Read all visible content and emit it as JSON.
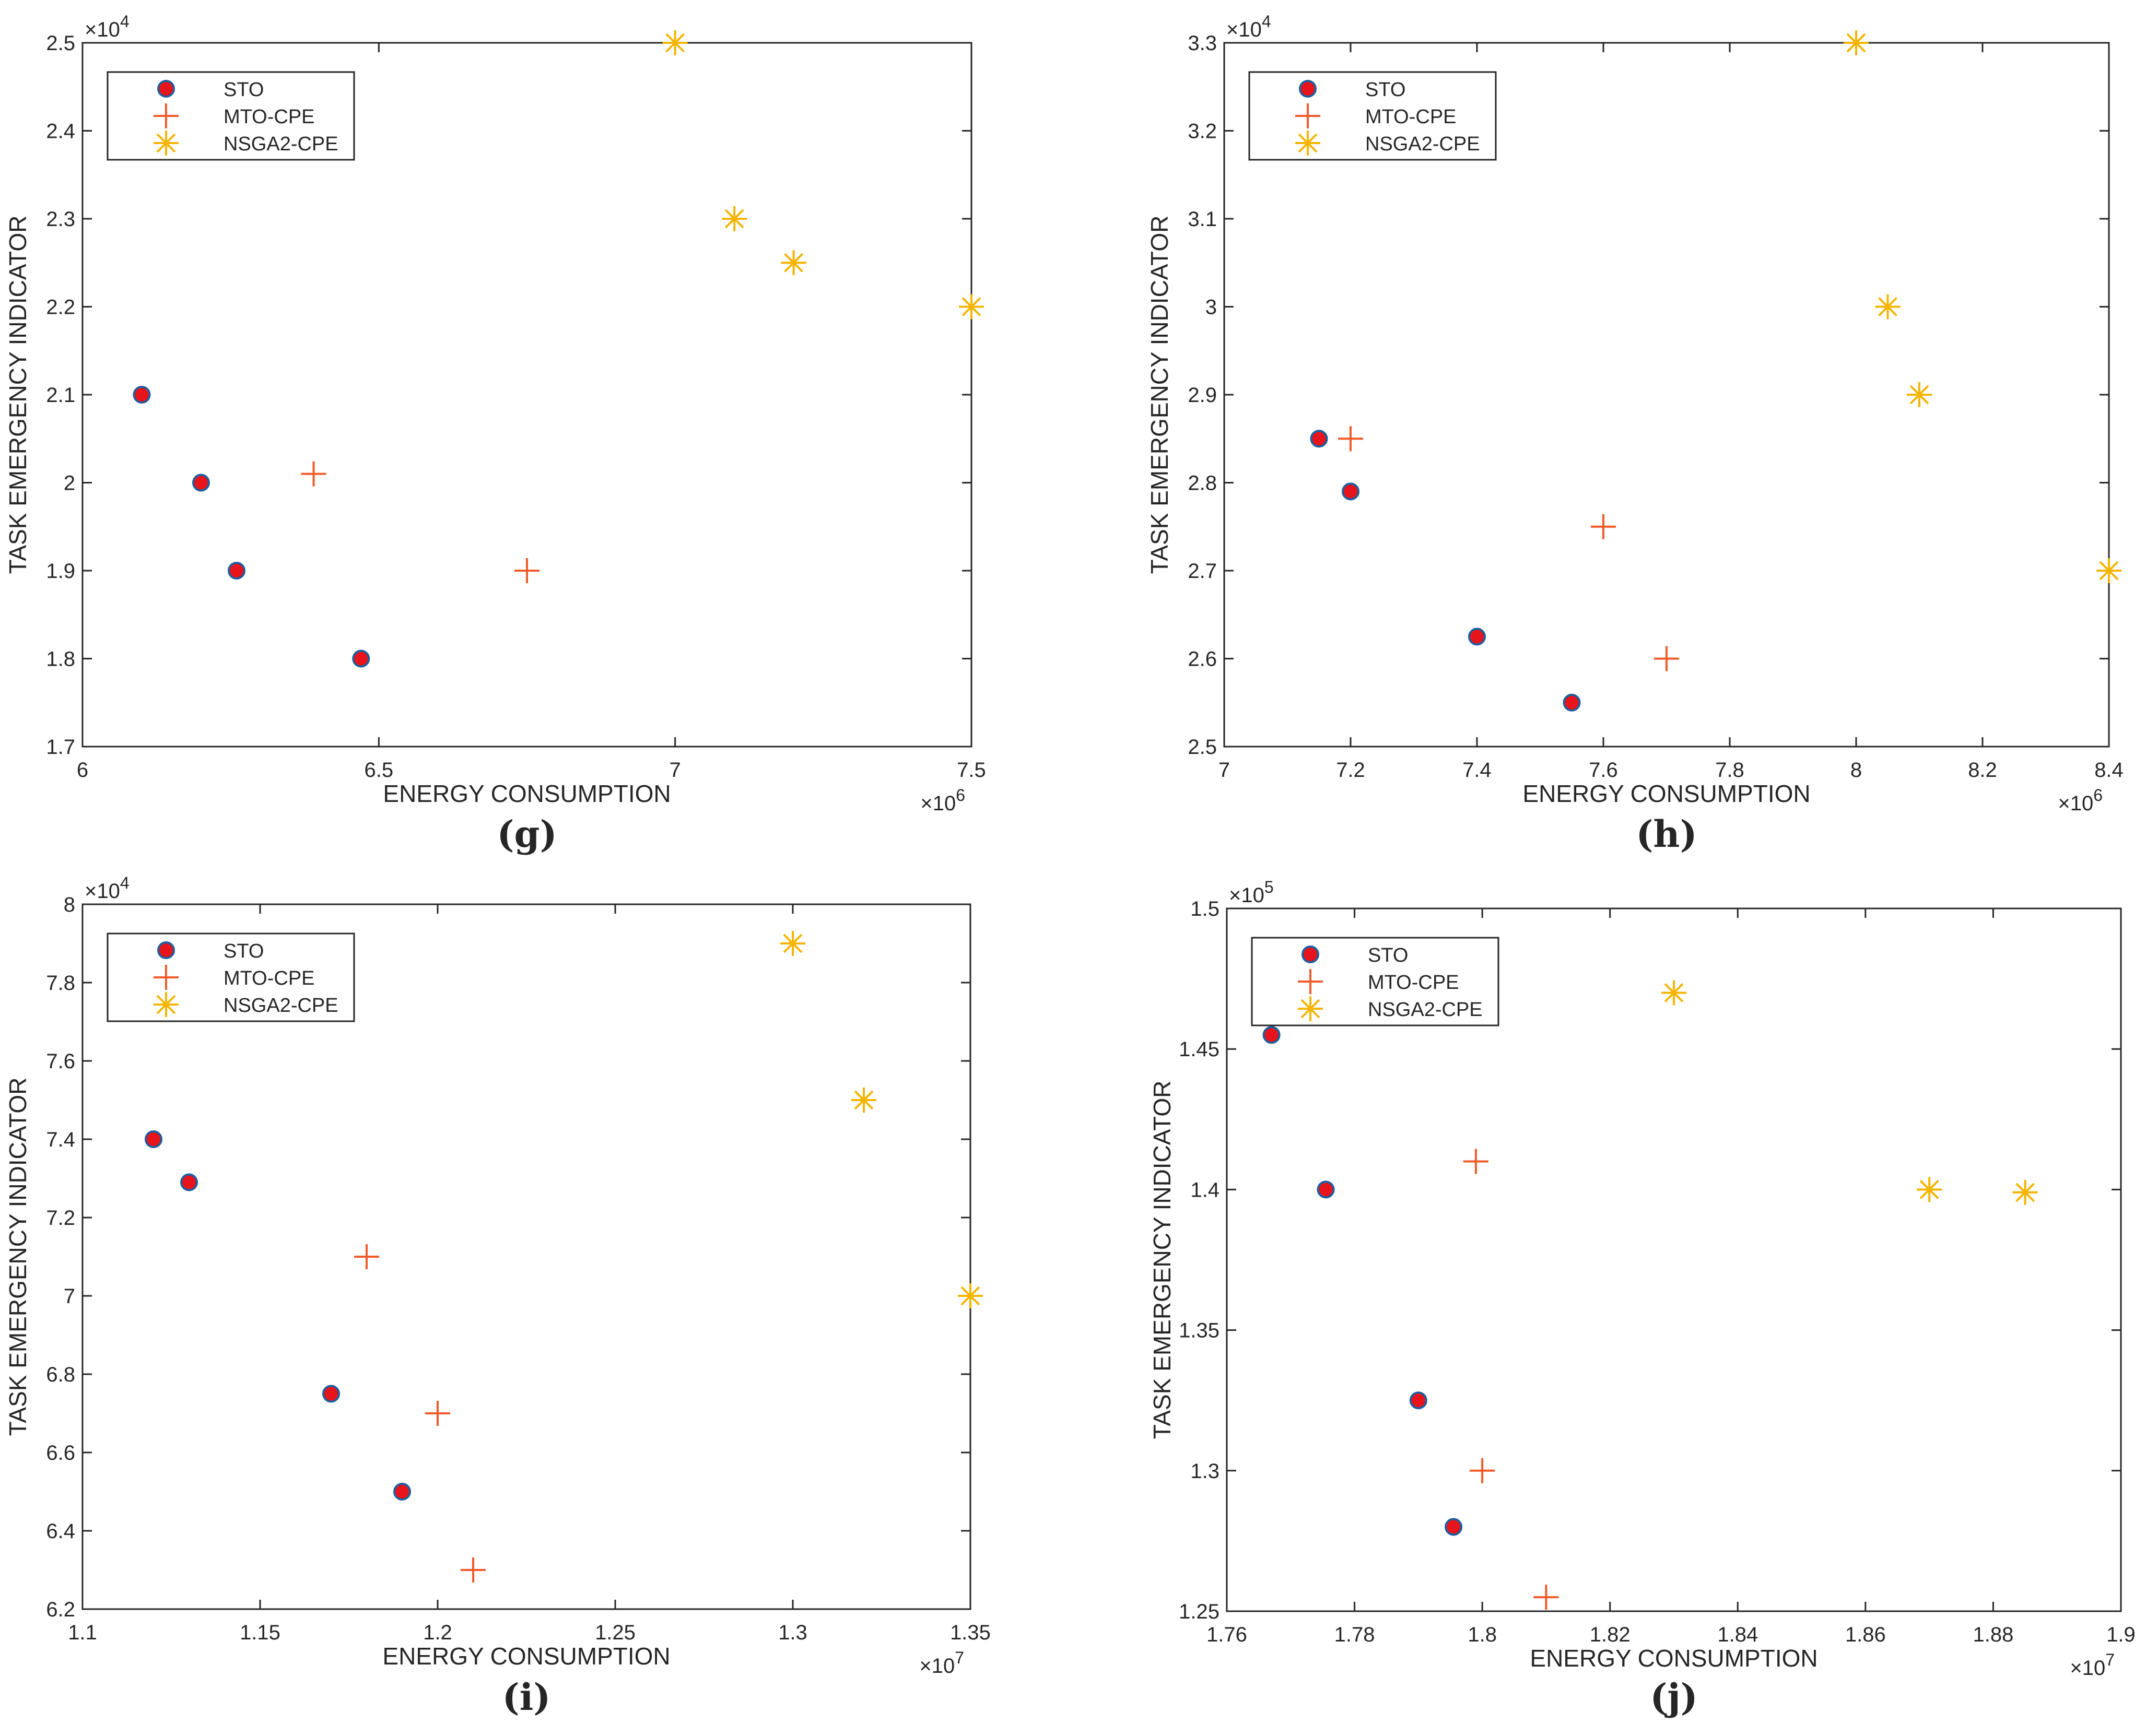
{
  "series_styles": {
    "STO": {
      "marker": "dot",
      "fill": "#e8141b",
      "stroke": "#1d5f9e"
    },
    "MTO-CPE": {
      "marker": "plus",
      "color": "#f05a28"
    },
    "NSGA2-CPE": {
      "marker": "asterisk",
      "color": "#f5b400"
    }
  },
  "chart_data": [
    {
      "type": "scatter",
      "panel": "g",
      "caption": "g",
      "xlabel": "ENERGY CONSUMPTION",
      "ylabel": "TASK EMERGENCY INDICATOR",
      "x_exponent": "6",
      "y_exponent": "4",
      "xlim": [
        6,
        7.5
      ],
      "ylim": [
        1.7,
        2.5
      ],
      "xticks": [
        "6",
        "6.5",
        "7",
        "7.5"
      ],
      "yticks": [
        "1.7",
        "1.8",
        "1.9",
        "2",
        "2.1",
        "2.2",
        "2.3",
        "2.4",
        "2.5"
      ],
      "legend": [
        "STO",
        "MTO-CPE",
        "NSGA2-CPE"
      ],
      "legend_position": "top-left",
      "series": [
        {
          "name": "STO",
          "x": [
            6.1,
            6.2,
            6.26,
            6.47
          ],
          "y": [
            2.1,
            2.0,
            1.9,
            1.8
          ]
        },
        {
          "name": "MTO-CPE",
          "x": [
            6.39,
            6.75
          ],
          "y": [
            2.01,
            1.9
          ]
        },
        {
          "name": "NSGA2-CPE",
          "x": [
            7.0,
            7.1,
            7.2,
            7.5
          ],
          "y": [
            2.5,
            2.3,
            2.25,
            2.2
          ]
        }
      ]
    },
    {
      "type": "scatter",
      "panel": "h",
      "caption": "h",
      "xlabel": "ENERGY CONSUMPTION",
      "ylabel": "TASK EMERGENCY INDICATOR",
      "x_exponent": "6",
      "y_exponent": "4",
      "xlim": [
        7,
        8.4
      ],
      "ylim": [
        2.5,
        3.3
      ],
      "xticks": [
        "7",
        "7.2",
        "7.4",
        "7.6",
        "7.8",
        "8",
        "8.2",
        "8.4"
      ],
      "yticks": [
        "2.5",
        "2.6",
        "2.7",
        "2.8",
        "2.9",
        "3",
        "3.1",
        "3.2",
        "3.3"
      ],
      "legend": [
        "STO",
        "MTO-CPE",
        "NSGA2-CPE"
      ],
      "legend_position": "top-left",
      "series": [
        {
          "name": "STO",
          "x": [
            7.15,
            7.2,
            7.4,
            7.55
          ],
          "y": [
            2.85,
            2.79,
            2.625,
            2.55
          ]
        },
        {
          "name": "MTO-CPE",
          "x": [
            7.2,
            7.6,
            7.7
          ],
          "y": [
            2.85,
            2.75,
            2.6
          ]
        },
        {
          "name": "NSGA2-CPE",
          "x": [
            8.0,
            8.05,
            8.1,
            8.4
          ],
          "y": [
            3.3,
            3.0,
            2.9,
            2.7
          ]
        }
      ]
    },
    {
      "type": "scatter",
      "panel": "i",
      "caption": "i",
      "xlabel": "ENERGY CONSUMPTION",
      "ylabel": "TASK EMERGENCY INDICATOR",
      "x_exponent": "7",
      "y_exponent": "4",
      "xlim": [
        1.1,
        1.35
      ],
      "ylim": [
        6.2,
        8
      ],
      "xticks": [
        "1.1",
        "1.15",
        "1.2",
        "1.25",
        "1.3",
        "1.35"
      ],
      "yticks": [
        "6.2",
        "6.4",
        "6.6",
        "6.8",
        "7",
        "7.2",
        "7.4",
        "7.6",
        "7.8",
        "8"
      ],
      "legend": [
        "STO",
        "MTO-CPE",
        "NSGA2-CPE"
      ],
      "legend_position": "top-left",
      "series": [
        {
          "name": "STO",
          "x": [
            1.12,
            1.13,
            1.17,
            1.19
          ],
          "y": [
            7.4,
            7.29,
            6.75,
            6.5
          ]
        },
        {
          "name": "MTO-CPE",
          "x": [
            1.18,
            1.2,
            1.21
          ],
          "y": [
            7.1,
            6.7,
            6.3
          ]
        },
        {
          "name": "NSGA2-CPE",
          "x": [
            1.3,
            1.32,
            1.35
          ],
          "y": [
            7.9,
            7.5,
            7.0
          ]
        }
      ]
    },
    {
      "type": "scatter",
      "panel": "j",
      "caption": "j",
      "xlabel": "ENERGY CONSUMPTION",
      "ylabel": "TASK EMERGENCY INDICATOR",
      "x_exponent": "7",
      "y_exponent": "5",
      "xlim": [
        1.76,
        1.9
      ],
      "ylim": [
        1.25,
        1.5
      ],
      "xticks": [
        "1.76",
        "1.78",
        "1.8",
        "1.82",
        "1.84",
        "1.86",
        "1.88",
        "1.9"
      ],
      "yticks": [
        "1.25",
        "1.3",
        "1.35",
        "1.4",
        "1.45",
        "1.5"
      ],
      "legend": [
        "STO",
        "MTO-CPE",
        "NSGA2-CPE"
      ],
      "legend_position": "top-left",
      "series": [
        {
          "name": "STO",
          "x": [
            1.767,
            1.7755,
            1.79,
            1.7955
          ],
          "y": [
            1.455,
            1.4,
            1.325,
            1.28
          ]
        },
        {
          "name": "MTO-CPE",
          "x": [
            1.799,
            1.8,
            1.81
          ],
          "y": [
            1.41,
            1.3,
            1.255
          ]
        },
        {
          "name": "NSGA2-CPE",
          "x": [
            1.83,
            1.87,
            1.885
          ],
          "y": [
            1.47,
            1.4,
            1.399
          ]
        }
      ]
    }
  ]
}
